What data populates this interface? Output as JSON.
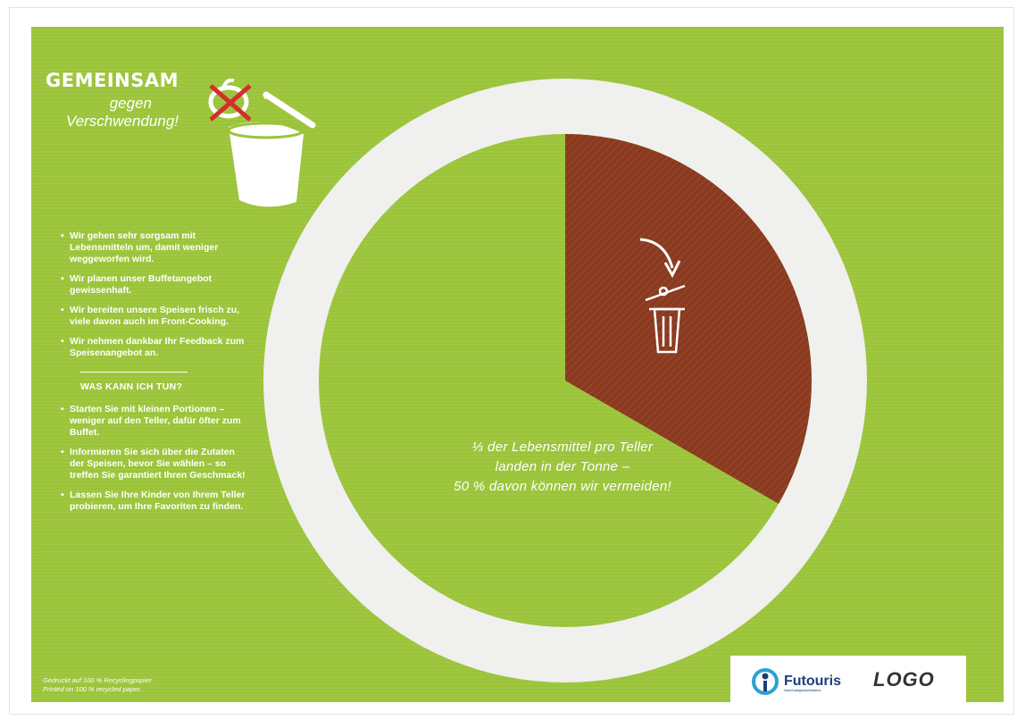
{
  "heading": {
    "line1": "GEMEINSAM",
    "line2": "gegen",
    "line3": "Verschwendung!"
  },
  "intro_points": [
    "Wir gehen sehr sorgsam mit Lebensmitteln um, damit weniger weggeworfen wird.",
    "Wir planen unser Buffetangebot gewissenhaft.",
    "Wir bereiten unsere Speisen frisch zu, viele davon auch im Front-Cooking.",
    "Wir nehmen dankbar Ihr Feedback zum Speisenangebot an."
  ],
  "section_title": "WAS KANN ICH TUN?",
  "tips": [
    "Starten Sie mit kleinen Portionen – weniger auf den Teller, dafür öfter zum Buffet.",
    "Informieren Sie sich über die Zutaten der Speisen, bevor Sie wählen – so treffen Sie garantiert Ihren Geschmack!",
    "Lassen Sie Ihre Kinder von Ihrem Teller probieren, um Ihre Favoriten zu finden."
  ],
  "footnote": {
    "line1": "Gedruckt auf 100 % Recyclingpapier.",
    "line2": "Printed on 100 % recycled paper."
  },
  "caption": {
    "line1": "⅓ der Lebensmittel pro Teller",
    "line2": "landen in der Tonne –",
    "line3": "50 % davon können wir vermeiden!"
  },
  "logos": {
    "futouris": "Futouris",
    "futouris_tagline": "Nachhaltigkeitsinitiative",
    "placeholder": "LOGO"
  },
  "colors": {
    "background_green": "#9bc43a",
    "slice_brown": "#8a3a20",
    "plate_ring": "#f0f0ef",
    "cross_red": "#d42d2d"
  },
  "icons": {
    "bin_illustration": "trash-bin-with-crossed-apple-icon",
    "trash_icon": "trash-can-icon",
    "arrow_icon": "curved-arrow-icon",
    "futouris_icon": "futouris-person-icon"
  },
  "plate_slice": {
    "fraction": 0.3333
  }
}
